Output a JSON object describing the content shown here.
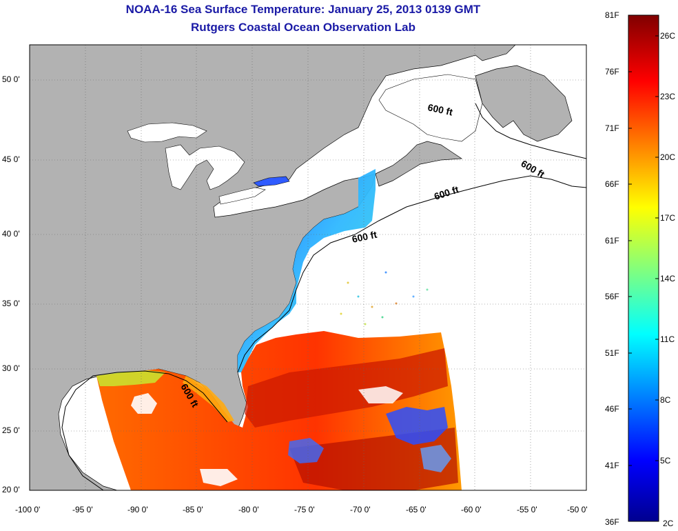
{
  "header": {
    "title": "NOAA-16 Sea Surface Temperature:  January 25, 2013 0139 GMT",
    "subtitle": "Rutgers Coastal Ocean Observation Lab"
  },
  "map": {
    "lat_ticks": [
      "50 0'",
      "45 0'",
      "40 0'",
      "35 0'",
      "30 0'",
      "25 0'",
      "20 0'"
    ],
    "lon_ticks": [
      "-100 0'",
      "-95 0'",
      "-90 0'",
      "-85 0'",
      "-80 0'",
      "-75 0'",
      "-70 0'",
      "-65 0'",
      "-60 0'",
      "-55 0'",
      "-50 0'"
    ],
    "contour_labels": [
      "600 ft",
      "600 ft",
      "600 ft",
      "600 ft",
      "600 ft"
    ],
    "colors": {
      "land": "#b2b2b2",
      "water_nodata": "#ffffff",
      "title": "#1a1aa6"
    }
  },
  "colorbar": {
    "fahrenheit_labels": [
      "81F",
      "76F",
      "71F",
      "66F",
      "61F",
      "56F",
      "51F",
      "46F",
      "41F",
      "36F"
    ],
    "celsius_labels": [
      "26C",
      "23C",
      "20C",
      "17C",
      "14C",
      "11C",
      "8C",
      "5C",
      "2C"
    ],
    "colormap": "jet"
  }
}
